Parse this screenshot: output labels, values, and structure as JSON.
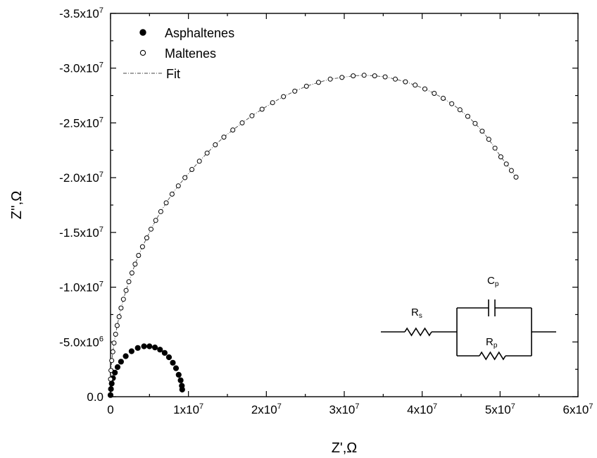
{
  "chart_data": {
    "type": "scatter",
    "xlabel": "Z',Ω",
    "ylabel": "Z'',Ω",
    "xlim": [
      0,
      60000000
    ],
    "ylim": [
      0,
      -35000000
    ],
    "x_ticks": [
      0,
      10000000,
      20000000,
      30000000,
      40000000,
      50000000,
      60000000
    ],
    "x_tick_labels": [
      "0",
      "1x10",
      "2x10",
      "3x10",
      "4x10",
      "5x10",
      "6x10"
    ],
    "x_tick_exponents": [
      "",
      "7",
      "7",
      "7",
      "7",
      "7",
      "7"
    ],
    "y_ticks": [
      0,
      -5000000,
      -10000000,
      -15000000,
      -20000000,
      -25000000,
      -30000000,
      -35000000
    ],
    "y_tick_labels": [
      "0.0",
      "-5.0x10",
      "-1.0x10",
      "-1.5x10",
      "-2.0x10",
      "-2.5x10",
      "-3.0x10",
      "-3.5x10"
    ],
    "y_tick_exponents": [
      "",
      "6",
      "7",
      "7",
      "7",
      "7",
      "7",
      "7"
    ],
    "legend": {
      "placement": "top-left",
      "entries": [
        {
          "label": "Asphaltenes",
          "marker": "filled-circle"
        },
        {
          "label": "Maltenes",
          "marker": "open-circle"
        },
        {
          "label": "Fit",
          "marker": "dash-dot-line"
        }
      ]
    },
    "series": [
      {
        "name": "Asphaltenes",
        "marker": "filled-circle",
        "x": [
          0,
          50000,
          150000,
          320000,
          560000,
          900000,
          1350000,
          1950000,
          2700000,
          3500000,
          4300000,
          5000000,
          5700000,
          6350000,
          6950000,
          7500000,
          8000000,
          8400000,
          8750000,
          9000000,
          9150000,
          9200000
        ],
        "y": [
          -150000,
          -700000,
          -1200000,
          -1700000,
          -2200000,
          -2700000,
          -3200000,
          -3700000,
          -4150000,
          -4450000,
          -4600000,
          -4600000,
          -4500000,
          -4300000,
          -4000000,
          -3600000,
          -3100000,
          -2600000,
          -2000000,
          -1500000,
          -1000000,
          -650000
        ]
      },
      {
        "name": "Maltenes",
        "marker": "open-circle",
        "x": [
          0,
          50000,
          150000,
          300000,
          450000,
          650000,
          850000,
          1100000,
          1350000,
          1650000,
          2000000,
          2350000,
          2750000,
          3150000,
          3600000,
          4100000,
          4650000,
          5200000,
          5800000,
          6450000,
          7150000,
          7900000,
          8700000,
          9550000,
          10450000,
          11400000,
          12400000,
          13450000,
          14550000,
          15700000,
          16900000,
          18150000,
          19450000,
          20800000,
          22200000,
          23650000,
          25150000,
          26700000,
          28200000,
          29700000,
          31150000,
          32550000,
          33900000,
          35250000,
          36550000,
          37850000,
          39100000,
          40350000,
          41550000,
          42700000,
          43800000,
          44850000,
          45850000,
          46800000,
          47700000,
          48550000,
          49350000,
          50100000,
          50800000,
          51450000,
          52050000
        ],
        "y": [
          -1600000,
          -2400000,
          -3300000,
          -4100000,
          -4900000,
          -5700000,
          -6500000,
          -7300000,
          -8100000,
          -8900000,
          -9700000,
          -10500000,
          -11300000,
          -12100000,
          -12900000,
          -13700000,
          -14500000,
          -15300000,
          -16100000,
          -16900000,
          -17700000,
          -18500000,
          -19250000,
          -20000000,
          -20750000,
          -21500000,
          -22250000,
          -23000000,
          -23700000,
          -24350000,
          -25000000,
          -25650000,
          -26250000,
          -26850000,
          -27400000,
          -27900000,
          -28350000,
          -28700000,
          -29000000,
          -29150000,
          -29300000,
          -29350000,
          -29300000,
          -29200000,
          -29000000,
          -28750000,
          -28450000,
          -28100000,
          -27700000,
          -27250000,
          -26750000,
          -26200000,
          -25600000,
          -24950000,
          -24250000,
          -23500000,
          -22700000,
          -21900000,
          -21250000,
          -20650000,
          -20050000
        ]
      }
    ],
    "circuit": {
      "rs_label": "R",
      "rs_sub": "s",
      "cp_label": "C",
      "cp_sub": "p",
      "rp_label": "R",
      "rp_sub": "p"
    }
  }
}
